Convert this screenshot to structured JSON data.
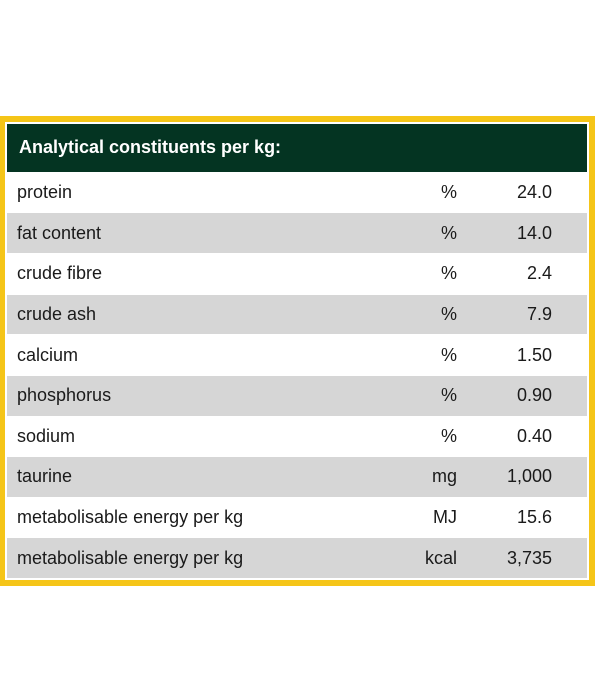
{
  "table": {
    "header": "Analytical constituents per kg:",
    "rows": [
      {
        "name": "protein",
        "unit": "%",
        "value": "24.0"
      },
      {
        "name": "fat content",
        "unit": "%",
        "value": "14.0"
      },
      {
        "name": "crude fibre",
        "unit": "%",
        "value": "2.4"
      },
      {
        "name": "crude ash",
        "unit": "%",
        "value": "7.9"
      },
      {
        "name": "calcium",
        "unit": "%",
        "value": "1.50"
      },
      {
        "name": "phosphorus",
        "unit": "%",
        "value": "0.90"
      },
      {
        "name": "sodium",
        "unit": "%",
        "value": "0.40"
      },
      {
        "name": "taurine",
        "unit": "mg",
        "value": "1,000"
      },
      {
        "name": "metabolisable energy per kg",
        "unit": "MJ",
        "value": "15.6"
      },
      {
        "name": "metabolisable energy per kg",
        "unit": "kcal",
        "value": "3,735"
      }
    ]
  },
  "colors": {
    "border": "#f5c518",
    "header_bg": "#043422",
    "row_shade": "#d6d6d6"
  }
}
